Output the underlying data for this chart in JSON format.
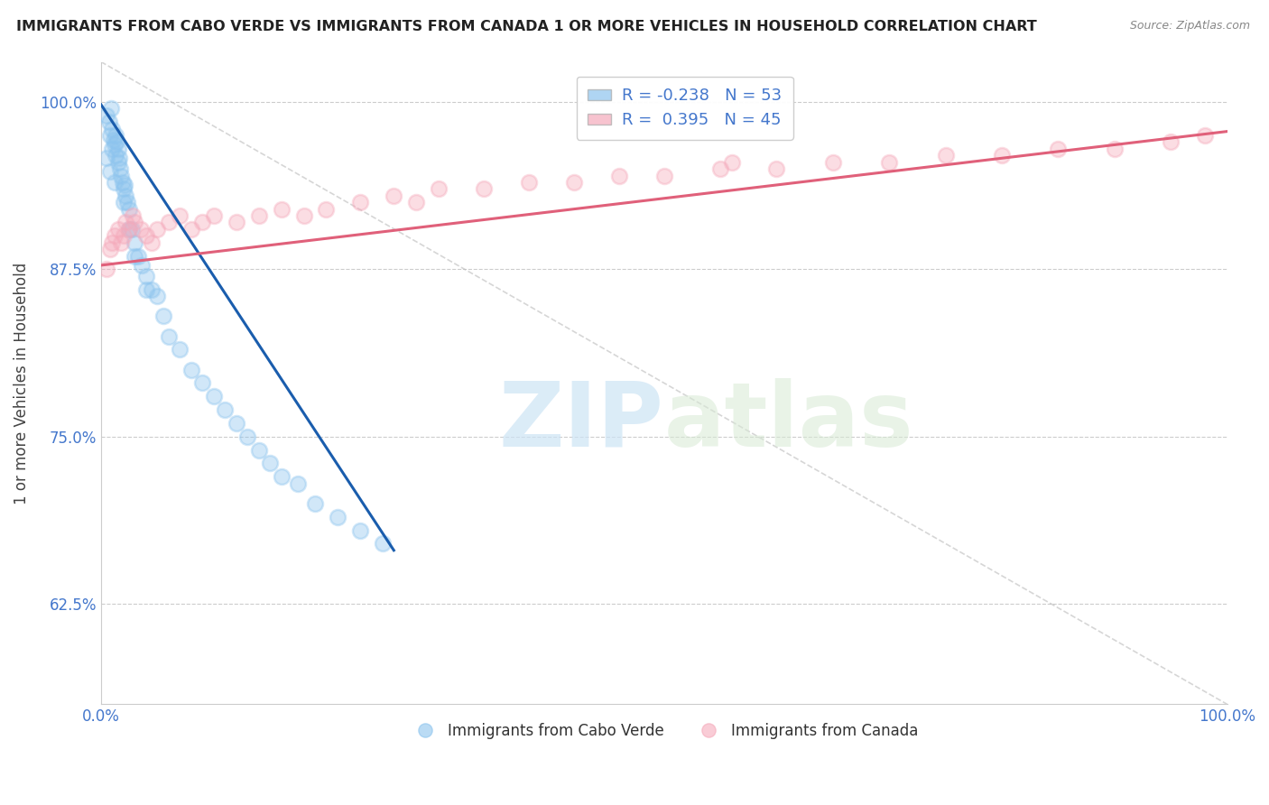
{
  "title": "IMMIGRANTS FROM CABO VERDE VS IMMIGRANTS FROM CANADA 1 OR MORE VEHICLES IN HOUSEHOLD CORRELATION CHART",
  "source": "Source: ZipAtlas.com",
  "ylabel": "1 or more Vehicles in Household",
  "xlim": [
    0,
    1.0
  ],
  "ylim": [
    0.55,
    1.03
  ],
  "yticks": [
    0.625,
    0.75,
    0.875,
    1.0
  ],
  "ytick_labels": [
    "62.5%",
    "75.0%",
    "87.5%",
    "100.0%"
  ],
  "xticks": [
    0.0,
    0.25,
    0.5,
    0.75,
    1.0
  ],
  "xtick_labels": [
    "0.0%",
    "",
    "",
    "",
    "100.0%"
  ],
  "cabo_verde_R": -0.238,
  "cabo_verde_N": 53,
  "canada_R": 0.395,
  "canada_N": 45,
  "cabo_verde_color": "#8DC4EE",
  "canada_color": "#F5AABB",
  "cabo_verde_line_color": "#1A5DAD",
  "canada_line_color": "#E0607A",
  "background_color": "#ffffff",
  "watermark_zip": "ZIP",
  "watermark_atlas": "atlas",
  "cabo_verde_x": [
    0.005,
    0.007,
    0.008,
    0.009,
    0.01,
    0.01,
    0.011,
    0.012,
    0.013,
    0.013,
    0.014,
    0.015,
    0.015,
    0.016,
    0.017,
    0.018,
    0.019,
    0.02,
    0.021,
    0.022,
    0.023,
    0.025,
    0.027,
    0.03,
    0.033,
    0.036,
    0.04,
    0.045,
    0.05,
    0.055,
    0.06,
    0.07,
    0.08,
    0.09,
    0.1,
    0.11,
    0.12,
    0.13,
    0.14,
    0.15,
    0.16,
    0.175,
    0.19,
    0.21,
    0.23,
    0.25,
    0.005,
    0.008,
    0.012,
    0.02,
    0.025,
    0.03,
    0.04
  ],
  "cabo_verde_y": [
    0.99,
    0.985,
    0.975,
    0.995,
    0.98,
    0.965,
    0.972,
    0.968,
    0.975,
    0.96,
    0.97,
    0.955,
    0.965,
    0.958,
    0.95,
    0.945,
    0.94,
    0.935,
    0.938,
    0.93,
    0.925,
    0.92,
    0.905,
    0.895,
    0.885,
    0.878,
    0.87,
    0.86,
    0.855,
    0.84,
    0.825,
    0.815,
    0.8,
    0.79,
    0.78,
    0.77,
    0.76,
    0.75,
    0.74,
    0.73,
    0.72,
    0.715,
    0.7,
    0.69,
    0.68,
    0.67,
    0.958,
    0.948,
    0.94,
    0.925,
    0.905,
    0.885,
    0.86
  ],
  "canada_x": [
    0.005,
    0.008,
    0.01,
    0.012,
    0.015,
    0.018,
    0.02,
    0.022,
    0.025,
    0.028,
    0.03,
    0.035,
    0.04,
    0.045,
    0.05,
    0.06,
    0.07,
    0.08,
    0.09,
    0.1,
    0.12,
    0.14,
    0.16,
    0.18,
    0.2,
    0.23,
    0.26,
    0.3,
    0.34,
    0.38,
    0.42,
    0.46,
    0.5,
    0.55,
    0.6,
    0.65,
    0.7,
    0.75,
    0.8,
    0.85,
    0.9,
    0.95,
    0.98,
    0.56,
    0.28
  ],
  "canada_y": [
    0.875,
    0.89,
    0.895,
    0.9,
    0.905,
    0.895,
    0.9,
    0.91,
    0.905,
    0.915,
    0.91,
    0.905,
    0.9,
    0.895,
    0.905,
    0.91,
    0.915,
    0.905,
    0.91,
    0.915,
    0.91,
    0.915,
    0.92,
    0.915,
    0.92,
    0.925,
    0.93,
    0.935,
    0.935,
    0.94,
    0.94,
    0.945,
    0.945,
    0.95,
    0.95,
    0.955,
    0.955,
    0.96,
    0.96,
    0.965,
    0.965,
    0.97,
    0.975,
    0.955,
    0.925
  ],
  "cabo_verde_trend_x": [
    0.0,
    0.26
  ],
  "cabo_verde_trend_y": [
    0.998,
    0.665
  ],
  "canada_trend_x": [
    0.0,
    1.0
  ],
  "canada_trend_y": [
    0.878,
    0.978
  ]
}
